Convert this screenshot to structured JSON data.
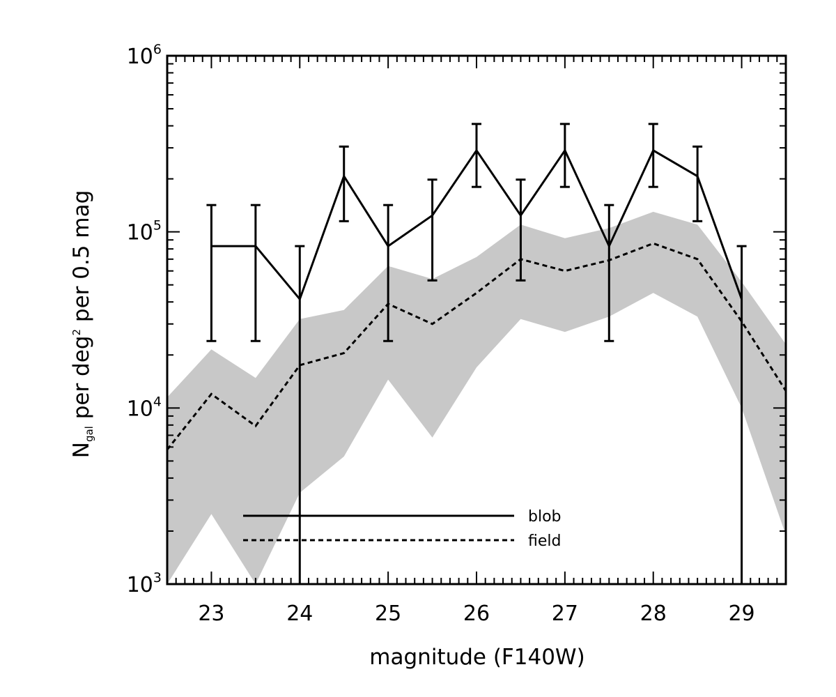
{
  "chart_data": {
    "type": "line",
    "title": "",
    "xlabel": "magnitude (F140W)",
    "ylabel": {
      "text": "N",
      "subscript": "gal",
      "mid": " per deg",
      "superscript": "2",
      "tail": " per 0.5 mag"
    },
    "xlim": [
      22.5,
      29.5
    ],
    "ylim": [
      1000,
      1000000
    ],
    "yscale": "log",
    "grid": false,
    "legend_position": "lower-left",
    "x_ticks": [
      23,
      24,
      25,
      26,
      27,
      28,
      29
    ],
    "x_tick_labels": [
      "23",
      "24",
      "25",
      "26",
      "27",
      "28",
      "29"
    ],
    "y_ticks": [
      {
        "value": 1000,
        "base": "10",
        "exp": "3"
      },
      {
        "value": 10000,
        "base": "10",
        "exp": "4"
      },
      {
        "value": 100000,
        "base": "10",
        "exp": "5"
      },
      {
        "value": 1000000,
        "base": "10",
        "exp": "6"
      }
    ],
    "series": [
      {
        "name": "blob",
        "style": "solid",
        "color": "#000000",
        "x": [
          23,
          23.5,
          24,
          24.5,
          25,
          25.5,
          26,
          26.5,
          27,
          27.5,
          28,
          28.5,
          29
        ],
        "y": [
          83000,
          83000,
          41500,
          207000,
          83000,
          124000,
          290000,
          124000,
          290000,
          83000,
          290000,
          207000,
          41500
        ],
        "err_low": [
          24000,
          24000,
          1000,
          115000,
          24000,
          53000,
          180000,
          53000,
          180000,
          24000,
          180000,
          115000,
          1000
        ],
        "err_high": [
          142000,
          142000,
          83000,
          305000,
          142000,
          198000,
          410000,
          198000,
          410000,
          142000,
          410000,
          305000,
          83000
        ]
      },
      {
        "name": "field",
        "style": "dashed",
        "color": "#000000",
        "x": [
          22.5,
          23,
          23.5,
          24,
          24.5,
          25,
          25.5,
          26,
          26.5,
          27,
          27.5,
          28,
          28.5,
          29,
          29.5
        ],
        "y": [
          5800,
          12000,
          7900,
          17500,
          20500,
          39000,
          30000,
          45000,
          70000,
          60000,
          69000,
          86000,
          70000,
          31000,
          12500
        ]
      },
      {
        "name": "",
        "type": "band",
        "color": "#c8c8c8",
        "x": [
          22.5,
          23,
          23.5,
          24,
          24.5,
          25,
          25.5,
          26,
          26.5,
          27,
          27.5,
          28,
          28.5,
          29,
          29.5
        ],
        "lower": [
          1000,
          2500,
          1000,
          3300,
          5300,
          14500,
          6800,
          17000,
          32000,
          27000,
          33000,
          45000,
          33000,
          10000,
          1900
        ],
        "upper": [
          11500,
          21500,
          14800,
          32000,
          36000,
          64000,
          54000,
          72000,
          110000,
          92000,
          105000,
          130000,
          110000,
          52000,
          23000
        ]
      }
    ]
  }
}
